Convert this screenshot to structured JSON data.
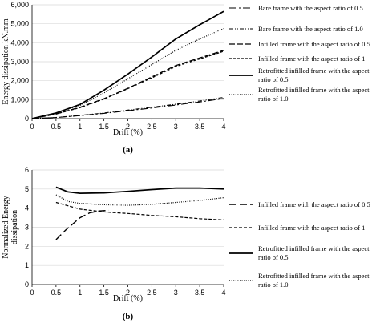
{
  "chart_data": [
    {
      "type": "line",
      "panel_label": "(a)",
      "xlabel": "Drift (%)",
      "ylabel": "Energy dissipation kN.mm",
      "xlim": [
        0,
        4
      ],
      "ylim": [
        0,
        6000
      ],
      "xticks": [
        "0",
        "0.5",
        "1",
        "1.5",
        "2",
        "2.5",
        "3",
        "3.5",
        "4"
      ],
      "yticks": [
        "0",
        "1,000",
        "2,000",
        "3,000",
        "4,000",
        "5,000",
        "6,000"
      ],
      "grid": "horizontal",
      "legend_position": "right",
      "series": [
        {
          "name": "Bare frame with the aspect ratio of 0.5",
          "x": [
            0,
            0.5,
            1,
            1.5,
            2,
            2.5,
            3,
            3.5,
            4
          ],
          "y": [
            0,
            60,
            160,
            280,
            420,
            560,
            720,
            880,
            1060
          ]
        },
        {
          "name": "Bare frame with the aspect ratio of 1.0",
          "x": [
            0,
            0.5,
            1,
            1.5,
            2,
            2.5,
            3,
            3.5,
            4
          ],
          "y": [
            0,
            65,
            170,
            300,
            450,
            600,
            760,
            930,
            1120
          ]
        },
        {
          "name": "Infilled frame with the aspect ratio of 0.5",
          "x": [
            0,
            0.5,
            1,
            1.5,
            2,
            2.5,
            3,
            3.5,
            4
          ],
          "y": [
            0,
            250,
            600,
            1050,
            1600,
            2200,
            2800,
            3200,
            3600
          ]
        },
        {
          "name": "Infilled frame with the aspect ratio of 1",
          "x": [
            0,
            0.5,
            1,
            1.5,
            2,
            2.5,
            3,
            3.5,
            4
          ],
          "y": [
            0,
            240,
            580,
            1030,
            1580,
            2150,
            2750,
            3150,
            3550
          ]
        },
        {
          "name": "Retrofitted infilled frame with the aspect ratio of 0.5",
          "x": [
            0,
            0.5,
            1,
            1.5,
            2,
            2.5,
            3,
            3.5,
            4
          ],
          "y": [
            0,
            300,
            750,
            1500,
            2350,
            3250,
            4200,
            4950,
            5650
          ]
        },
        {
          "name": "Retrofitted infilled frame with the aspect ratio of 1.0",
          "x": [
            0,
            0.5,
            1,
            1.5,
            2,
            2.5,
            3,
            3.5,
            4
          ],
          "y": [
            0,
            280,
            700,
            1350,
            2100,
            2850,
            3600,
            4200,
            4750
          ]
        }
      ]
    },
    {
      "type": "line",
      "panel_label": "(b)",
      "xlabel": "Drift (%)",
      "ylabel": "Normalized Energy dissipation",
      "xlim": [
        0,
        4
      ],
      "ylim": [
        0,
        6
      ],
      "xticks": [
        "0",
        "0.5",
        "1",
        "1.5",
        "2",
        "2.5",
        "3",
        "3.5",
        "4"
      ],
      "yticks": [
        "0",
        "1",
        "2",
        "3",
        "4",
        "5",
        "6"
      ],
      "grid": "horizontal",
      "legend_position": "right",
      "series": [
        {
          "name": "Infilled frame with the aspect ratio of 0.5",
          "x": [
            0.5,
            0.7,
            1.0,
            1.2,
            1.4,
            1.6
          ],
          "y": [
            2.35,
            2.85,
            3.5,
            3.75,
            3.85,
            3.88
          ]
        },
        {
          "name": "Infilled frame with the aspect ratio of 1",
          "x": [
            0.5,
            1.0,
            1.5,
            2.0,
            2.5,
            3.0,
            3.5,
            4.0
          ],
          "y": [
            4.3,
            3.95,
            3.8,
            3.72,
            3.62,
            3.55,
            3.45,
            3.38
          ]
        },
        {
          "name": "Retrofitted infilled frame with the aspect ratio of 0.5",
          "x": [
            0.5,
            0.75,
            1.0,
            1.5,
            2.0,
            2.5,
            3.0,
            3.5,
            4.0
          ],
          "y": [
            5.1,
            4.85,
            4.78,
            4.8,
            4.88,
            4.97,
            5.05,
            5.05,
            5.0
          ]
        },
        {
          "name": "Retrofitted infilled frame with the aspect ratio of 1.0",
          "x": [
            0.5,
            0.75,
            1.0,
            1.5,
            2.0,
            2.5,
            3.0,
            3.5,
            4.0
          ],
          "y": [
            4.7,
            4.35,
            4.25,
            4.18,
            4.15,
            4.2,
            4.3,
            4.4,
            4.55
          ]
        }
      ]
    }
  ]
}
